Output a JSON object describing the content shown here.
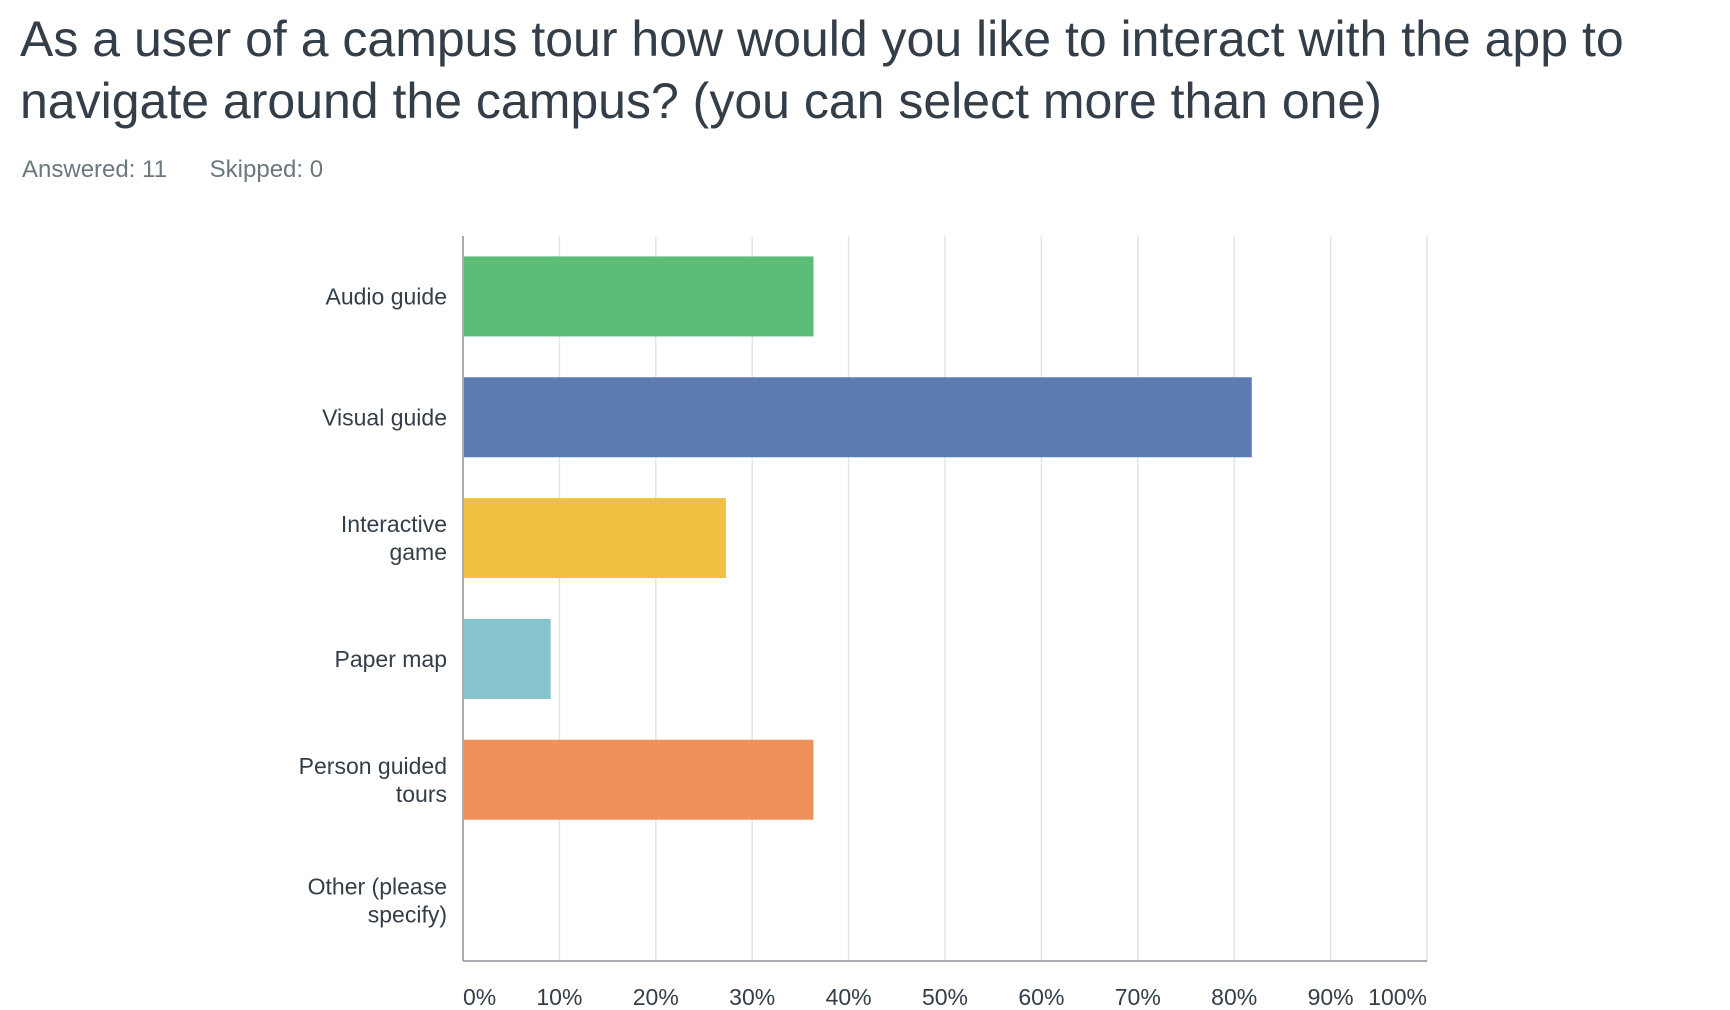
{
  "question": {
    "title": "As a user of a campus tour how would you like to interact with the app to navigate around the campus? (you can select more than one)",
    "answered": "Answered: 11",
    "skipped": "Skipped: 0"
  },
  "chart_data": {
    "type": "bar",
    "orientation": "horizontal",
    "categories": [
      [
        "Audio guide"
      ],
      [
        "Visual guide"
      ],
      [
        "Interactive",
        "game"
      ],
      [
        "Paper map"
      ],
      [
        "Person guided",
        "tours"
      ],
      [
        "Other (please",
        "specify)"
      ]
    ],
    "values": [
      36.36,
      81.82,
      27.27,
      9.09,
      36.36,
      0
    ],
    "colors": [
      "#5cbd76",
      "#5b7bb1",
      "#efc041",
      "#86c5cd",
      "#ef915b",
      "#b4b4b4"
    ],
    "xlim": [
      0,
      100
    ],
    "xticks": [
      "0%",
      "10%",
      "20%",
      "30%",
      "40%",
      "50%",
      "60%",
      "70%",
      "80%",
      "90%",
      "100%"
    ],
    "grid": true,
    "legend": "none"
  }
}
